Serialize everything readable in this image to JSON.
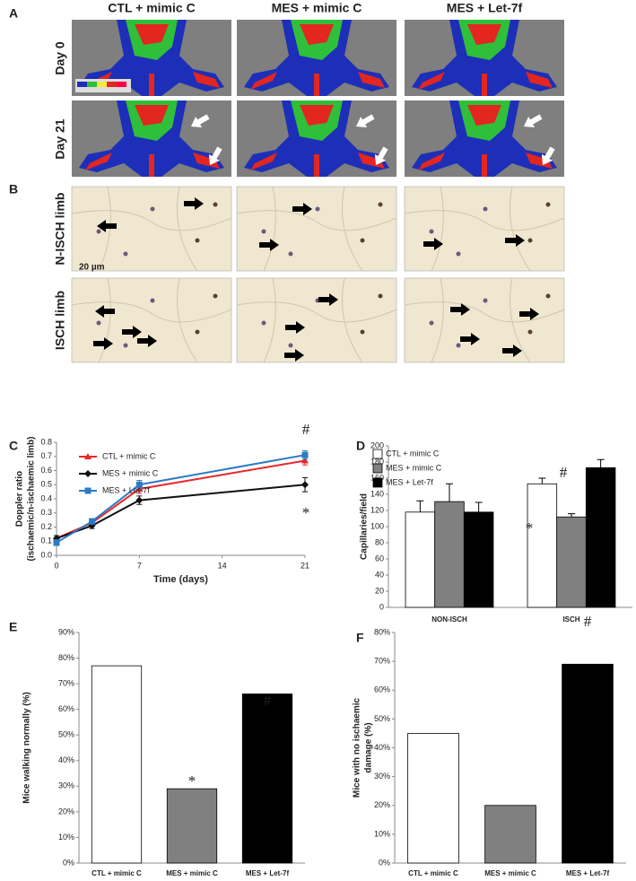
{
  "figure": {
    "panels": [
      "A",
      "B"
    ],
    "columns": [
      "CTL + mimic C",
      "MES + mimic C",
      "MES + Let-7f"
    ],
    "rows_a": [
      "Day 0",
      "Day 21"
    ],
    "rows_b": [
      "N-ISCH limb",
      "ISCH limb"
    ],
    "scale_bar": "20 µm"
  },
  "chart_data": [
    {
      "type": "line",
      "label": "C",
      "xlabel": "Time (days)",
      "ylabel": [
        "Doppler ratio",
        "(ischaemic/n-ischaemic limb)"
      ],
      "x": [
        0,
        3,
        7,
        21
      ],
      "xlim": [
        0,
        21
      ],
      "xticks": [
        0,
        7,
        14,
        21
      ],
      "ylim": [
        0,
        0.8
      ],
      "yticks": [
        {
          "value": 0,
          "label": "0.0"
        },
        0.1,
        0.2,
        0.3,
        0.4,
        0.5,
        0.6,
        0.7,
        0.8
      ],
      "series": [
        {
          "name": "CTL + mimic C",
          "color": "#e8272a",
          "marker": "triangle",
          "values": [
            0.12,
            0.23,
            0.47,
            0.67
          ],
          "errors": [
            0.02,
            0.02,
            0.03,
            0.03
          ]
        },
        {
          "name": "MES + mimic C",
          "color": "#111111",
          "marker": "diamond",
          "values": [
            0.12,
            0.21,
            0.39,
            0.5
          ],
          "errors": [
            0.02,
            0.02,
            0.03,
            0.05
          ]
        },
        {
          "name": "MES + Let-7f",
          "color": "#2b7bc4",
          "marker": "square",
          "values": [
            0.09,
            0.24,
            0.5,
            0.71
          ],
          "errors": [
            0.02,
            0.02,
            0.03,
            0.03
          ]
        }
      ],
      "annotations": [
        "#",
        "*"
      ]
    },
    {
      "type": "bar",
      "label": "D",
      "ylabel": [
        "Capillaries/field"
      ],
      "categories": [
        "NON-ISCH",
        "ISCH"
      ],
      "ylim": [
        0,
        200
      ],
      "yticks": [
        0,
        20,
        40,
        60,
        80,
        100,
        120,
        140,
        160,
        180,
        200
      ],
      "series": [
        {
          "name": "CTL + mimic C",
          "color": "#ffffff",
          "values": [
            118,
            153
          ],
          "errors": [
            14,
            7
          ]
        },
        {
          "name": "MES + mimic C",
          "color": "#808080",
          "values": [
            131,
            112
          ],
          "errors": [
            22,
            4
          ]
        },
        {
          "name": "MES + Let-7f",
          "color": "#000000",
          "values": [
            118,
            173
          ],
          "errors": [
            12,
            10
          ]
        }
      ],
      "annotations": [
        "*",
        "#"
      ]
    },
    {
      "type": "bar",
      "label": "E",
      "ylabel": [
        "Mice walking normally (%)"
      ],
      "categories": [
        "CTL + mimic C",
        "MES + mimic C",
        "MES + Let-7f"
      ],
      "colors": [
        "#ffffff",
        "#808080",
        "#000000"
      ],
      "values": [
        77,
        29,
        66
      ],
      "ylim": [
        0,
        90
      ],
      "yticks": [
        {
          "value": 0,
          "label": "0%"
        },
        {
          "value": 10,
          "label": "10%"
        },
        {
          "value": 20,
          "label": "20%"
        },
        {
          "value": 30,
          "label": "30%"
        },
        {
          "value": 40,
          "label": "40%"
        },
        {
          "value": 50,
          "label": "50%"
        },
        {
          "value": 60,
          "label": "60%"
        },
        {
          "value": 70,
          "label": "70%"
        },
        {
          "value": 80,
          "label": "80%"
        },
        {
          "value": 90,
          "label": "90%"
        }
      ],
      "annotations": [
        "*",
        "#"
      ]
    },
    {
      "type": "bar",
      "label": "F",
      "ylabel": [
        "Mice with no ischaemic",
        "damage (%)"
      ],
      "categories": [
        "CTL + mimic C",
        "MES + mimic C",
        "MES + Let-7f"
      ],
      "colors": [
        "#ffffff",
        "#808080",
        "#000000"
      ],
      "values": [
        45,
        20,
        69
      ],
      "ylim": [
        0,
        80
      ],
      "yticks": [
        {
          "value": 0,
          "label": "0%"
        },
        {
          "value": 10,
          "label": "10%"
        },
        {
          "value": 20,
          "label": "20%"
        },
        {
          "value": 30,
          "label": "30%"
        },
        {
          "value": 40,
          "label": "40%"
        },
        {
          "value": 50,
          "label": "50%"
        },
        {
          "value": 60,
          "label": "60%"
        },
        {
          "value": 70,
          "label": "70%"
        },
        {
          "value": 80,
          "label": "80%"
        }
      ],
      "annotations": [
        "#"
      ]
    }
  ]
}
